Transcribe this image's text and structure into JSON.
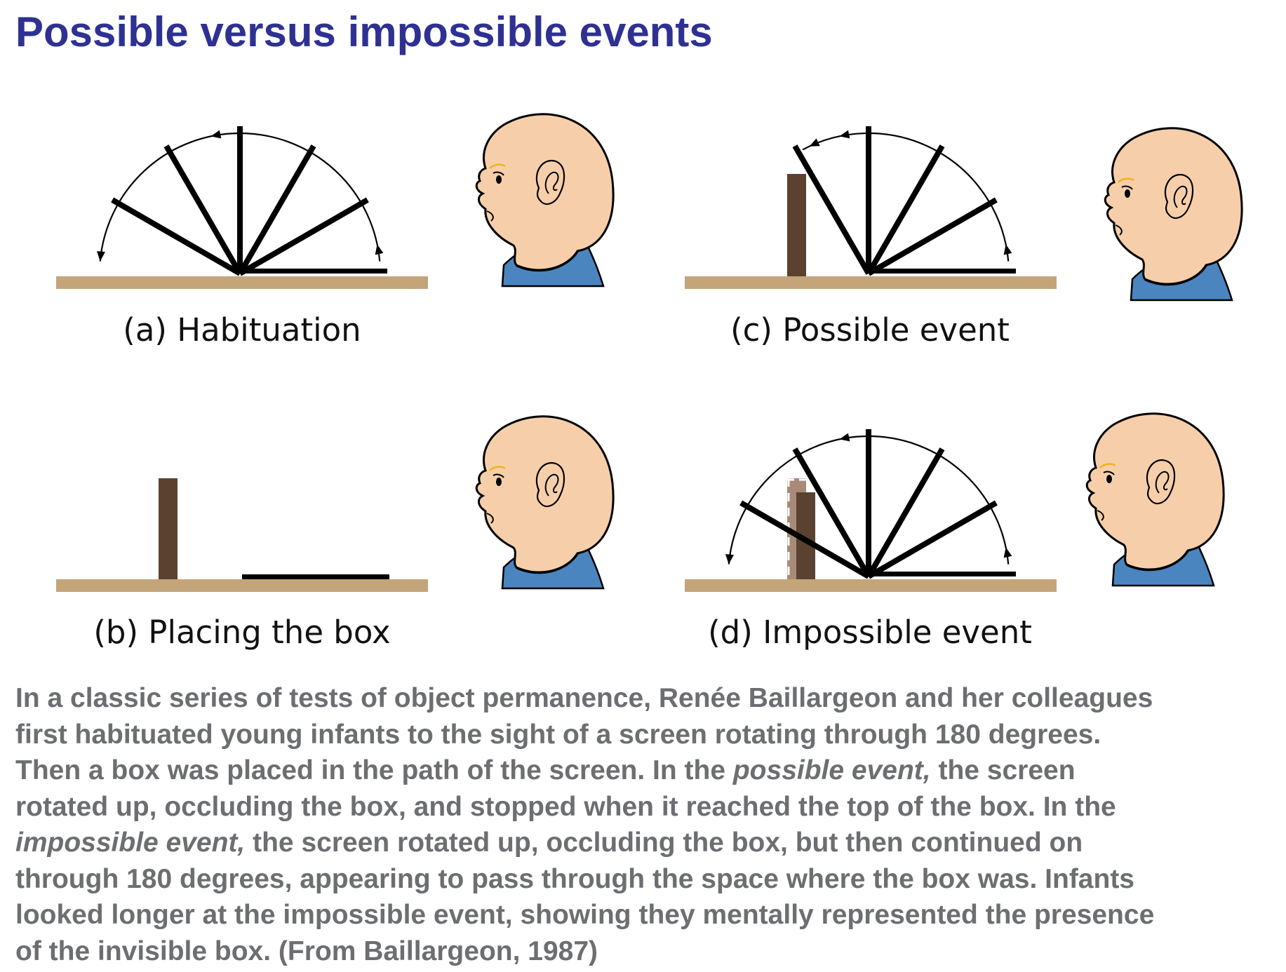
{
  "title": "Possible versus impossible events",
  "panels": {
    "a": {
      "caption": "(a) Habituation"
    },
    "b": {
      "caption": "(b) Placing the box"
    },
    "c": {
      "caption": "(c) Possible event"
    },
    "d": {
      "caption": "(d) Impossible event"
    }
  },
  "colors": {
    "title": "#2e3192",
    "floor": "#c4a57a",
    "box": "#5b4130",
    "box_faded": "#a88a78",
    "skin": "#f6cfaa",
    "shirt": "#4a85c0",
    "eyebrow": "#f2b31a",
    "body_text": "#6d6e71"
  },
  "description": {
    "lines": [
      [
        "In a classic series of tests of object permanence, Renée Baillargeon and her colleagues"
      ],
      [
        "first habituated young infants to the sight of a screen rotating through 180 degrees."
      ],
      [
        "Then a box was placed in the path of the screen. In the ",
        "possible event,",
        " the screen"
      ],
      [
        "rotated up, occluding the box, and stopped when it reached the top of the box. In the"
      ],
      [
        "",
        "impossible event,",
        " the screen rotated up, occluding the box, but then continued on"
      ],
      [
        "through 180 degrees, appearing to pass through the space where the box was. Infants"
      ],
      [
        "looked longer at the impossible event, showing they mentally represented the presence"
      ],
      [
        "of the invisible box. (From Baillargeon, 1987)"
      ]
    ]
  }
}
